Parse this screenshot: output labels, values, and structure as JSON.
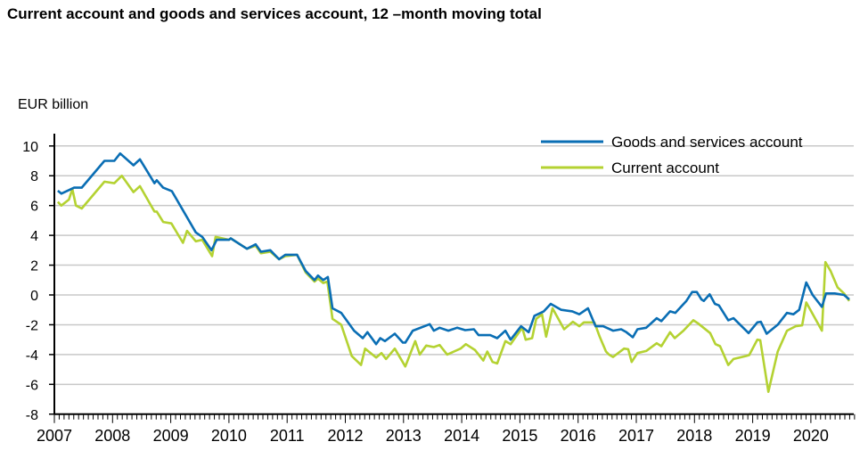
{
  "chart_data": {
    "type": "line",
    "title": "Current account and goods and services account, 12 –month moving total",
    "ylabel": "EUR billion",
    "xlabel": "",
    "ylim": [
      -8,
      10
    ],
    "yticks": [
      10,
      8,
      6,
      4,
      2,
      0,
      -2,
      -4,
      -6,
      -8
    ],
    "xlim": [
      2007,
      2020.75
    ],
    "xticks": [
      "2007",
      "2008",
      "2009",
      "2010",
      "2011",
      "2012",
      "2013",
      "2014",
      "2015",
      "2016",
      "2017",
      "2018",
      "2019",
      "2020"
    ],
    "grid": "horizontal",
    "legend_position": "top-right",
    "series": [
      {
        "name": "Goods and services account",
        "color": "#0a6eb4",
        "points": [
          [
            2007.06,
            7.0
          ],
          [
            2007.12,
            6.8
          ],
          [
            2007.34,
            7.2
          ],
          [
            2007.47,
            7.2
          ],
          [
            2007.86,
            9.0
          ],
          [
            2008.03,
            9.0
          ],
          [
            2008.13,
            9.5
          ],
          [
            2008.36,
            8.7
          ],
          [
            2008.47,
            9.1
          ],
          [
            2008.72,
            7.5
          ],
          [
            2008.76,
            7.7
          ],
          [
            2008.87,
            7.2
          ],
          [
            2009.02,
            6.96
          ],
          [
            2009.43,
            4.2
          ],
          [
            2009.54,
            3.9
          ],
          [
            2009.7,
            3.0
          ],
          [
            2009.79,
            3.7
          ],
          [
            2010.0,
            3.7
          ],
          [
            2010.03,
            3.8
          ],
          [
            2010.31,
            3.1
          ],
          [
            2010.46,
            3.4
          ],
          [
            2010.55,
            2.9
          ],
          [
            2010.71,
            3.0
          ],
          [
            2010.86,
            2.4
          ],
          [
            2010.97,
            2.7
          ],
          [
            2011.17,
            2.7
          ],
          [
            2011.32,
            1.6
          ],
          [
            2011.47,
            1.0
          ],
          [
            2011.53,
            1.3
          ],
          [
            2011.62,
            1.0
          ],
          [
            2011.7,
            1.2
          ],
          [
            2011.78,
            -0.9
          ],
          [
            2011.93,
            -1.2
          ],
          [
            2012.15,
            -2.4
          ],
          [
            2012.3,
            -2.9
          ],
          [
            2012.38,
            -2.5
          ],
          [
            2012.53,
            -3.3
          ],
          [
            2012.6,
            -2.9
          ],
          [
            2012.68,
            -3.1
          ],
          [
            2012.85,
            -2.6
          ],
          [
            2012.99,
            -3.2
          ],
          [
            2013.03,
            -3.2
          ],
          [
            2013.16,
            -2.4
          ],
          [
            2013.45,
            -1.96
          ],
          [
            2013.52,
            -2.4
          ],
          [
            2013.62,
            -2.2
          ],
          [
            2013.77,
            -2.4
          ],
          [
            2013.92,
            -2.2
          ],
          [
            2014.06,
            -2.36
          ],
          [
            2014.21,
            -2.3
          ],
          [
            2014.29,
            -2.7
          ],
          [
            2014.49,
            -2.7
          ],
          [
            2014.61,
            -2.9
          ],
          [
            2014.75,
            -2.4
          ],
          [
            2014.84,
            -3.0
          ],
          [
            2015.02,
            -2.1
          ],
          [
            2015.15,
            -2.5
          ],
          [
            2015.25,
            -1.4
          ],
          [
            2015.41,
            -1.1
          ],
          [
            2015.53,
            -0.6
          ],
          [
            2015.71,
            -1.0
          ],
          [
            2015.9,
            -1.1
          ],
          [
            2016.02,
            -1.3
          ],
          [
            2016.17,
            -0.9
          ],
          [
            2016.3,
            -2.1
          ],
          [
            2016.43,
            -2.1
          ],
          [
            2016.6,
            -2.4
          ],
          [
            2016.74,
            -2.3
          ],
          [
            2016.83,
            -2.5
          ],
          [
            2016.94,
            -2.84
          ],
          [
            2017.02,
            -2.3
          ],
          [
            2017.17,
            -2.2
          ],
          [
            2017.35,
            -1.56
          ],
          [
            2017.43,
            -1.76
          ],
          [
            2017.58,
            -1.1
          ],
          [
            2017.67,
            -1.2
          ],
          [
            2017.86,
            -0.4
          ],
          [
            2017.96,
            0.2
          ],
          [
            2018.04,
            0.2
          ],
          [
            2018.12,
            -0.3
          ],
          [
            2018.16,
            -0.4
          ],
          [
            2018.26,
            0.04
          ],
          [
            2018.35,
            -0.6
          ],
          [
            2018.42,
            -0.7
          ],
          [
            2018.58,
            -1.7
          ],
          [
            2018.67,
            -1.56
          ],
          [
            2018.93,
            -2.56
          ],
          [
            2019.08,
            -1.84
          ],
          [
            2019.14,
            -1.8
          ],
          [
            2019.24,
            -2.6
          ],
          [
            2019.43,
            -2.0
          ],
          [
            2019.59,
            -1.2
          ],
          [
            2019.7,
            -1.3
          ],
          [
            2019.8,
            -1.0
          ],
          [
            2019.92,
            0.84
          ],
          [
            2020.03,
            0
          ],
          [
            2020.19,
            -0.8
          ],
          [
            2020.26,
            0.1
          ],
          [
            2020.41,
            0.1
          ],
          [
            2020.57,
            0
          ],
          [
            2020.66,
            -0.3
          ]
        ]
      },
      {
        "name": "Current account",
        "color": "#b4d232",
        "points": [
          [
            2007.06,
            6.25
          ],
          [
            2007.12,
            6.0
          ],
          [
            2007.25,
            6.4
          ],
          [
            2007.31,
            7.1
          ],
          [
            2007.37,
            6.0
          ],
          [
            2007.47,
            5.8
          ],
          [
            2007.86,
            7.6
          ],
          [
            2008.03,
            7.5
          ],
          [
            2008.16,
            8.0
          ],
          [
            2008.36,
            6.9
          ],
          [
            2008.47,
            7.3
          ],
          [
            2008.72,
            5.6
          ],
          [
            2008.76,
            5.6
          ],
          [
            2008.87,
            4.9
          ],
          [
            2009.01,
            4.8
          ],
          [
            2009.21,
            3.5
          ],
          [
            2009.28,
            4.3
          ],
          [
            2009.43,
            3.6
          ],
          [
            2009.54,
            3.7
          ],
          [
            2009.71,
            2.6
          ],
          [
            2009.77,
            3.9
          ],
          [
            2010.0,
            3.7
          ],
          [
            2010.03,
            3.8
          ],
          [
            2010.31,
            3.1
          ],
          [
            2010.46,
            3.3
          ],
          [
            2010.55,
            2.8
          ],
          [
            2010.71,
            2.9
          ],
          [
            2010.86,
            2.4
          ],
          [
            2010.97,
            2.6
          ],
          [
            2011.17,
            2.7
          ],
          [
            2011.32,
            1.5
          ],
          [
            2011.47,
            0.9
          ],
          [
            2011.53,
            1.1
          ],
          [
            2011.62,
            0.8
          ],
          [
            2011.69,
            0.9
          ],
          [
            2011.78,
            -1.6
          ],
          [
            2011.93,
            -2.0
          ],
          [
            2012.11,
            -4.1
          ],
          [
            2012.27,
            -4.7
          ],
          [
            2012.34,
            -3.6
          ],
          [
            2012.53,
            -4.2
          ],
          [
            2012.62,
            -3.9
          ],
          [
            2012.7,
            -4.3
          ],
          [
            2012.85,
            -3.6
          ],
          [
            2013.03,
            -4.8
          ],
          [
            2013.2,
            -3.1
          ],
          [
            2013.28,
            -4.0
          ],
          [
            2013.39,
            -3.4
          ],
          [
            2013.52,
            -3.5
          ],
          [
            2013.62,
            -3.36
          ],
          [
            2013.75,
            -4.0
          ],
          [
            2013.98,
            -3.6
          ],
          [
            2014.07,
            -3.3
          ],
          [
            2014.23,
            -3.7
          ],
          [
            2014.37,
            -4.4
          ],
          [
            2014.44,
            -3.8
          ],
          [
            2014.53,
            -4.5
          ],
          [
            2014.61,
            -4.6
          ],
          [
            2014.75,
            -3.1
          ],
          [
            2014.84,
            -3.3
          ],
          [
            2015.04,
            -2.2
          ],
          [
            2015.1,
            -3.0
          ],
          [
            2015.21,
            -2.9
          ],
          [
            2015.28,
            -1.6
          ],
          [
            2015.38,
            -1.3
          ],
          [
            2015.45,
            -2.8
          ],
          [
            2015.56,
            -0.9
          ],
          [
            2015.76,
            -2.3
          ],
          [
            2015.91,
            -1.8
          ],
          [
            2016.02,
            -2.1
          ],
          [
            2016.1,
            -1.84
          ],
          [
            2016.28,
            -1.84
          ],
          [
            2016.37,
            -2.8
          ],
          [
            2016.48,
            -3.8
          ],
          [
            2016.53,
            -4.0
          ],
          [
            2016.6,
            -4.16
          ],
          [
            2016.79,
            -3.6
          ],
          [
            2016.86,
            -3.64
          ],
          [
            2016.92,
            -4.5
          ],
          [
            2017.02,
            -3.9
          ],
          [
            2017.17,
            -3.76
          ],
          [
            2017.35,
            -3.24
          ],
          [
            2017.43,
            -3.44
          ],
          [
            2017.58,
            -2.5
          ],
          [
            2017.66,
            -2.9
          ],
          [
            2017.81,
            -2.4
          ],
          [
            2017.98,
            -1.7
          ],
          [
            2018.06,
            -1.9
          ],
          [
            2018.27,
            -2.56
          ],
          [
            2018.36,
            -3.3
          ],
          [
            2018.44,
            -3.44
          ],
          [
            2018.58,
            -4.7
          ],
          [
            2018.67,
            -4.3
          ],
          [
            2018.88,
            -4.1
          ],
          [
            2018.94,
            -4.04
          ],
          [
            2019.08,
            -3.0
          ],
          [
            2019.13,
            -3.04
          ],
          [
            2019.27,
            -6.5
          ],
          [
            2019.43,
            -3.8
          ],
          [
            2019.59,
            -2.4
          ],
          [
            2019.74,
            -2.1
          ],
          [
            2019.85,
            -2.04
          ],
          [
            2019.92,
            -0.5
          ],
          [
            2020.19,
            -2.4
          ],
          [
            2020.25,
            2.2
          ],
          [
            2020.34,
            1.6
          ],
          [
            2020.46,
            0.5
          ],
          [
            2020.57,
            0.1
          ],
          [
            2020.66,
            -0.4
          ]
        ]
      }
    ]
  }
}
